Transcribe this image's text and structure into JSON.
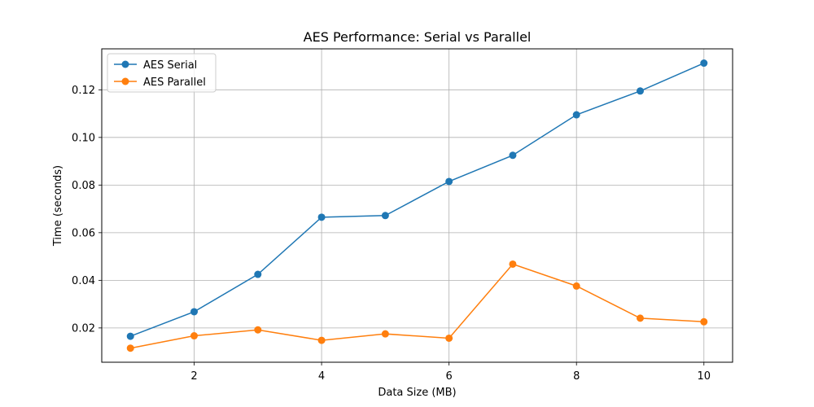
{
  "chart_data": {
    "type": "line",
    "title": "AES Performance: Serial vs Parallel",
    "xlabel": "Data Size (MB)",
    "ylabel": "Time (seconds)",
    "xlim": [
      0.55,
      10.45
    ],
    "ylim": [
      0.0056,
      0.1372
    ],
    "xticks": [
      2,
      4,
      6,
      8,
      10
    ],
    "yticks": [
      0.02,
      0.04,
      0.06,
      0.08,
      0.1,
      0.12
    ],
    "ytick_labels": [
      "0.02",
      "0.04",
      "0.06",
      "0.08",
      "0.10",
      "0.12"
    ],
    "grid": true,
    "legend": "top-left",
    "x": [
      1,
      2,
      3,
      4,
      5,
      6,
      7,
      8,
      9,
      10
    ],
    "series": [
      {
        "name": "AES Serial",
        "color": "#1f77b4",
        "values": [
          0.0165,
          0.0268,
          0.0425,
          0.0665,
          0.0672,
          0.0815,
          0.0925,
          0.1095,
          0.1195,
          0.1312
        ]
      },
      {
        "name": "AES Parallel",
        "color": "#ff7f0e",
        "values": [
          0.0115,
          0.0167,
          0.0192,
          0.0148,
          0.0175,
          0.0157,
          0.0468,
          0.0376,
          0.0241,
          0.0226
        ]
      }
    ]
  }
}
